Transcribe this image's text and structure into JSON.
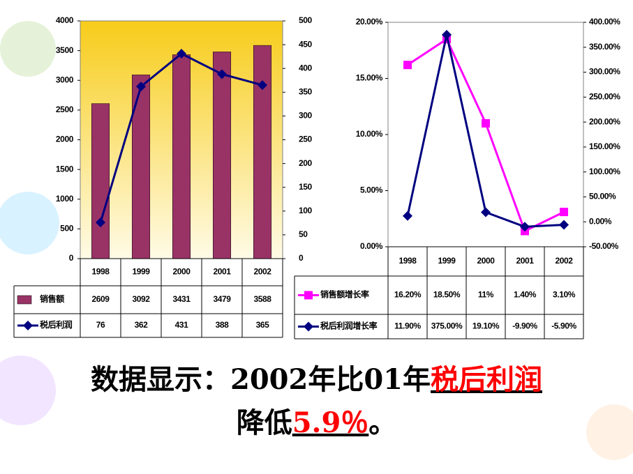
{
  "chart_data": [
    {
      "type": "bar",
      "categories": [
        "1998",
        "1999",
        "2000",
        "2001",
        "2002"
      ],
      "series": [
        {
          "name": "销售额",
          "type": "bar",
          "color": "#993366",
          "values": [
            2609,
            3092,
            3431,
            3479,
            3588
          ]
        },
        {
          "name": "税后利润",
          "type": "line",
          "marker": "diamond",
          "axis": "y2",
          "color": "#000080",
          "values": [
            76,
            362,
            431,
            388,
            365
          ]
        }
      ],
      "ylim": [
        0,
        4000
      ],
      "yticks": [
        0,
        500,
        1000,
        1500,
        2000,
        2500,
        3000,
        3500,
        4000
      ],
      "y2lim": [
        0,
        500
      ],
      "y2ticks": [
        0,
        50,
        100,
        150,
        200,
        250,
        300,
        350,
        400,
        450,
        500
      ]
    },
    {
      "type": "line",
      "categories": [
        "1998",
        "1999",
        "2000",
        "2001",
        "2002"
      ],
      "series": [
        {
          "name": "销售额增长率",
          "type": "line",
          "marker": "square",
          "color": "#ff00ff",
          "values": [
            16.2,
            18.5,
            11,
            1.4,
            3.1
          ],
          "value_labels": [
            "16.20%",
            "18.50%",
            "11%",
            "1.40%",
            "3.10%"
          ]
        },
        {
          "name": "税后利润增长率",
          "type": "line",
          "marker": "diamond",
          "axis": "y2",
          "color": "#000080",
          "values": [
            11.9,
            375,
            19.1,
            -9.9,
            -5.9
          ],
          "value_labels": [
            "11.90%",
            "375.00%",
            "19.10%",
            "-9.90%",
            "-5.90%"
          ]
        }
      ],
      "ylim": [
        0,
        20
      ],
      "yticks": [
        {
          "value": 0,
          "label": "0.00%"
        },
        {
          "value": 5,
          "label": "5.00%"
        },
        {
          "value": 10,
          "label": "10.00%"
        },
        {
          "value": 15,
          "label": "15.00%"
        },
        {
          "value": 20,
          "label": "20.00%"
        }
      ],
      "y2lim": [
        -50,
        400
      ],
      "y2ticks": [
        {
          "value": -50,
          "label": "-50.00%"
        },
        {
          "value": 0,
          "label": "0.00%"
        },
        {
          "value": 50,
          "label": "50.00%"
        },
        {
          "value": 100,
          "label": "100.00%"
        },
        {
          "value": 150,
          "label": "150.00%"
        },
        {
          "value": 200,
          "label": "200.00%"
        },
        {
          "value": 250,
          "label": "250.00%"
        },
        {
          "value": 300,
          "label": "300.00%"
        },
        {
          "value": 350,
          "label": "350.00%"
        },
        {
          "value": 400,
          "label": "400.00%"
        }
      ]
    }
  ],
  "caption": {
    "line1": "数据显示：2002年比01年",
    "line1_highlight": "税后利润",
    "line2": "降低",
    "line2_highlight": "5.9％",
    "line2_end": "。"
  }
}
